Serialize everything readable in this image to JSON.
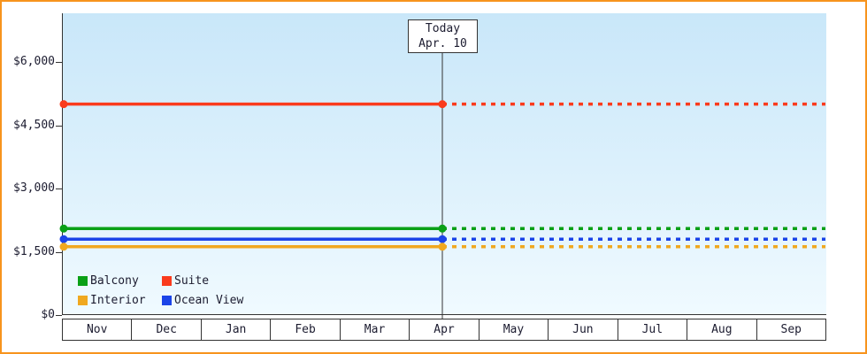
{
  "window": {
    "border_color": "#f7941d"
  },
  "chart_data": {
    "type": "line",
    "title": "",
    "x_axis": {
      "tick_labels": [
        "Nov",
        "Dec",
        "Jan",
        "Feb",
        "Mar",
        "Apr",
        "May",
        "Jun",
        "Jul",
        "Aug",
        "Sep"
      ]
    },
    "y_axis": {
      "tick_labels": [
        "$0",
        "$1,500",
        "$3,000",
        "$4,500",
        "$6,000"
      ],
      "tick_values": [
        0,
        1500,
        3000,
        4500,
        6000
      ],
      "ylim": [
        0,
        7150
      ],
      "grid": false
    },
    "today_marker": {
      "line1": "Today",
      "line2": "Apr. 10",
      "month": "Apr",
      "day": 10
    },
    "series": [
      {
        "name": "Suite",
        "color": "#fa3b1d",
        "value": 5000,
        "style_before_today": "solid",
        "style_after_today": "dotted"
      },
      {
        "name": "Balcony",
        "color": "#0aa016",
        "value": 2050,
        "style_before_today": "solid",
        "style_after_today": "dotted"
      },
      {
        "name": "Ocean View",
        "color": "#1b44e8",
        "value": 1800,
        "style_before_today": "solid",
        "style_after_today": "dotted"
      },
      {
        "name": "Interior",
        "color": "#f0a81f",
        "value": 1620,
        "style_before_today": "solid",
        "style_after_today": "dotted"
      }
    ],
    "legend": {
      "position": "bottom-left",
      "order": [
        "Balcony",
        "Suite",
        "Interior",
        "Ocean View"
      ]
    }
  }
}
